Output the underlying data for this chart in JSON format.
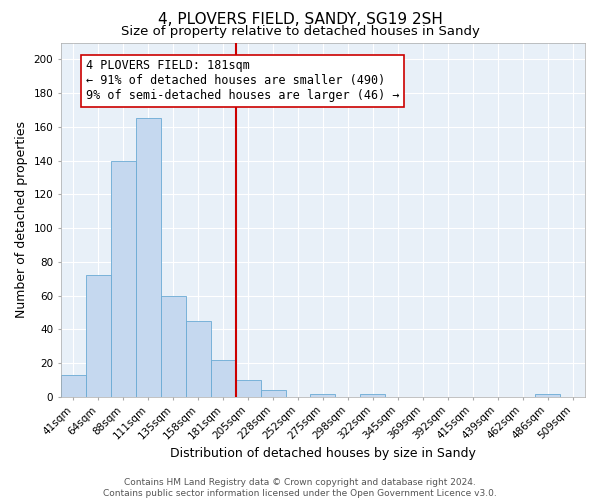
{
  "title": "4, PLOVERS FIELD, SANDY, SG19 2SH",
  "subtitle": "Size of property relative to detached houses in Sandy",
  "xlabel": "Distribution of detached houses by size in Sandy",
  "ylabel": "Number of detached properties",
  "footer_line1": "Contains HM Land Registry data © Crown copyright and database right 2024.",
  "footer_line2": "Contains public sector information licensed under the Open Government Licence v3.0.",
  "bin_labels": [
    "41sqm",
    "64sqm",
    "88sqm",
    "111sqm",
    "135sqm",
    "158sqm",
    "181sqm",
    "205sqm",
    "228sqm",
    "252sqm",
    "275sqm",
    "298sqm",
    "322sqm",
    "345sqm",
    "369sqm",
    "392sqm",
    "415sqm",
    "439sqm",
    "462sqm",
    "486sqm",
    "509sqm"
  ],
  "bar_heights": [
    13,
    72,
    140,
    165,
    60,
    45,
    22,
    10,
    4,
    0,
    2,
    0,
    2,
    0,
    0,
    0,
    0,
    0,
    0,
    2,
    0
  ],
  "bar_color": "#c5d8ef",
  "bar_edge_color": "#6aaad4",
  "highlight_bar_index": 6,
  "highlight_line_color": "#cc0000",
  "annotation_text": "4 PLOVERS FIELD: 181sqm\n← 91% of detached houses are smaller (490)\n9% of semi-detached houses are larger (46) →",
  "annotation_box_facecolor": "#ffffff",
  "annotation_box_edgecolor": "#cc0000",
  "ylim": [
    0,
    210
  ],
  "yticks": [
    0,
    20,
    40,
    60,
    80,
    100,
    120,
    140,
    160,
    180,
    200
  ],
  "plot_bg_color": "#e8f0f8",
  "grid_color": "#ffffff",
  "title_fontsize": 11,
  "subtitle_fontsize": 9.5,
  "axis_label_fontsize": 9,
  "tick_fontsize": 7.5,
  "annotation_fontsize": 8.5,
  "footer_fontsize": 6.5
}
